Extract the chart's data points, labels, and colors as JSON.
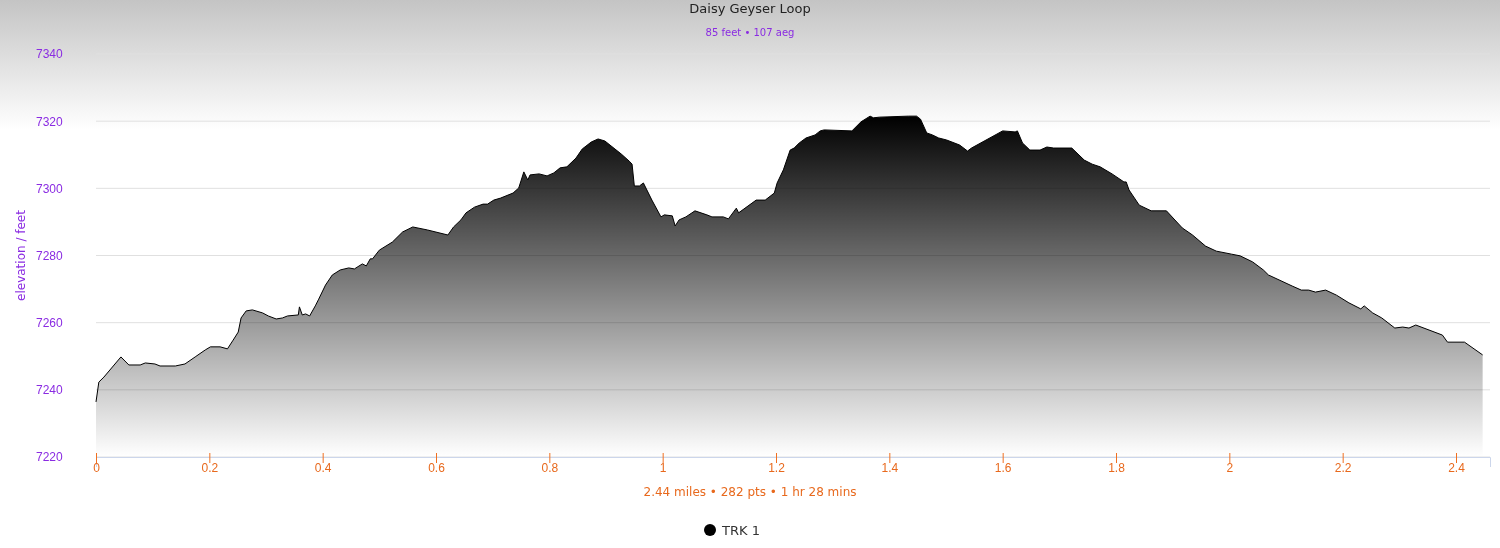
{
  "chart_data": {
    "type": "area",
    "title": "Daisy Geyser Loop",
    "subtitle": "85 feet • 107 aeg",
    "ylabel": "elevation / feet",
    "annotations": [
      "2.44 miles • 282 pts • 1 hr 28 mins"
    ],
    "xlim": [
      0,
      2.46
    ],
    "xticks": [
      0,
      0.2,
      0.4,
      0.6,
      0.8,
      1,
      1.2,
      1.4,
      1.6,
      1.8,
      2,
      2.2,
      2.4
    ],
    "ylim": [
      7220,
      7340
    ],
    "yticks": [
      7220,
      7240,
      7260,
      7280,
      7300,
      7320,
      7340
    ],
    "grid": "y",
    "legend": "bottom",
    "marker": "none",
    "line_style": "solid",
    "series": [
      {
        "name": "TRK 1",
        "color": "#000000",
        "x": [
          0,
          0.005,
          0.014,
          0.044,
          0.058,
          0.078,
          0.087,
          0.104,
          0.113,
          0.14,
          0.157,
          0.175,
          0.193,
          0.202,
          0.219,
          0.232,
          0.242,
          0.251,
          0.256,
          0.265,
          0.276,
          0.294,
          0.304,
          0.318,
          0.329,
          0.338,
          0.357,
          0.359,
          0.364,
          0.37,
          0.377,
          0.387,
          0.393,
          0.405,
          0.417,
          0.431,
          0.446,
          0.456,
          0.47,
          0.477,
          0.484,
          0.488,
          0.5,
          0.523,
          0.541,
          0.559,
          0.585,
          0.621,
          0.631,
          0.644,
          0.653,
          0.668,
          0.683,
          0.691,
          0.702,
          0.714,
          0.736,
          0.746,
          0.755,
          0.762,
          0.766,
          0.782,
          0.796,
          0.808,
          0.819,
          0.831,
          0.847,
          0.858,
          0.874,
          0.886,
          0.898,
          0.927,
          0.941,
          0.946,
          0.95,
          0.959,
          0.966,
          0.981,
          0.997,
          1.003,
          1.017,
          1.022,
          1.029,
          1.041,
          1.057,
          1.078,
          1.087,
          1.107,
          1.116,
          1.13,
          1.134,
          1.165,
          1.181,
          1.197,
          1.202,
          1.213,
          1.225,
          1.232,
          1.241,
          1.253,
          1.269,
          1.278,
          1.285,
          1.334,
          1.35,
          1.366,
          1.372,
          1.383,
          1.434,
          1.448,
          1.455,
          1.466,
          1.476,
          1.487,
          1.501,
          1.524,
          1.538,
          1.545,
          1.6,
          1.622,
          1.626,
          1.635,
          1.648,
          1.666,
          1.678,
          1.69,
          1.722,
          1.744,
          1.758,
          1.772,
          1.793,
          1.814,
          1.818,
          1.823,
          1.841,
          1.862,
          1.889,
          1.917,
          1.935,
          1.958,
          1.977,
          2.004,
          2.019,
          2.041,
          2.06,
          2.069,
          2.111,
          2.127,
          2.14,
          2.152,
          2.17,
          2.189,
          2.211,
          2.232,
          2.238,
          2.253,
          2.269,
          2.292,
          2.306,
          2.317,
          2.329,
          2.376,
          2.385,
          2.415,
          2.447
        ],
        "values": [
          7236.4,
          7242.3,
          7243.8,
          7249.8,
          7247.4,
          7247.4,
          7248,
          7247.7,
          7247.1,
          7247.1,
          7247.7,
          7249.8,
          7251.9,
          7252.8,
          7252.8,
          7252.2,
          7254.8,
          7257.2,
          7261.4,
          7263.5,
          7263.8,
          7262.9,
          7262,
          7261.1,
          7261.4,
          7262,
          7262.3,
          7264.7,
          7262.3,
          7262.6,
          7262,
          7265,
          7267,
          7271.2,
          7274.2,
          7275.7,
          7276.3,
          7276,
          7277.5,
          7276.9,
          7279,
          7279,
          7281.6,
          7284,
          7287,
          7288.5,
          7287.6,
          7286.1,
          7288.5,
          7290.6,
          7292.7,
          7294.4,
          7295.3,
          7295.3,
          7296.5,
          7297.1,
          7298.6,
          7300.1,
          7304.9,
          7302.5,
          7304,
          7304.3,
          7303.7,
          7304.6,
          7306.1,
          7306.4,
          7309,
          7311.7,
          7313.8,
          7314.7,
          7314.1,
          7310.2,
          7308.1,
          7307.2,
          7300.7,
          7300.7,
          7301.6,
          7296.5,
          7291.5,
          7292.1,
          7291.8,
          7288.8,
          7290.6,
          7291.5,
          7293.3,
          7292.1,
          7291.5,
          7291.5,
          7290.9,
          7294.1,
          7292.7,
          7296.5,
          7296.5,
          7298.6,
          7301.6,
          7305.5,
          7311.4,
          7312,
          7313.5,
          7315,
          7315.9,
          7317.1,
          7317.4,
          7317.1,
          7319.8,
          7321.5,
          7321,
          7321.2,
          7321.5,
          7321.5,
          7320.6,
          7316.5,
          7315.9,
          7315,
          7314.4,
          7312.9,
          7311.1,
          7312,
          7317.1,
          7316.8,
          7317.1,
          7313.5,
          7311.4,
          7311.4,
          7312.3,
          7312,
          7312,
          7308.4,
          7307.2,
          7306.4,
          7304.3,
          7301.9,
          7301.9,
          7299.5,
          7295,
          7293.3,
          7293.3,
          7288.2,
          7286.1,
          7282.8,
          7281.3,
          7280.4,
          7279.9,
          7278.1,
          7275.7,
          7274.2,
          7270.9,
          7269.7,
          7269.7,
          7269.1,
          7269.7,
          7268.2,
          7265.9,
          7264.1,
          7265,
          7262.9,
          7261.4,
          7258.4,
          7258.7,
          7258.4,
          7259.3,
          7256.3,
          7254.2,
          7254.2,
          7250.4
        ]
      }
    ]
  }
}
